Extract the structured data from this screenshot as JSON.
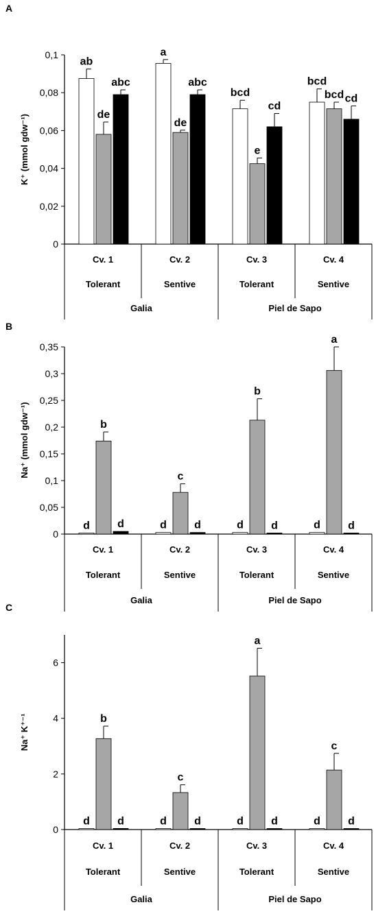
{
  "chart_data": [
    {
      "panel_letter": "A",
      "type": "bar",
      "ylabel": "K⁺ (mmol gdw⁻¹)",
      "ylim": [
        0,
        0.1
      ],
      "yticks": [
        0,
        0.02,
        0.04,
        0.06,
        0.08,
        0.1
      ],
      "ytick_labels": [
        "0",
        "0,02",
        "0,04",
        "0,06",
        "0,08",
        "0,1"
      ],
      "categories": [
        "Cv. 1",
        "Cv. 2",
        "Cv. 3",
        "Cv. 4"
      ],
      "category_groups": [
        "Tolerant",
        "Sentive",
        "Tolerant",
        "Sentive"
      ],
      "type_groups": [
        "Galia",
        "Piel de Sapo"
      ],
      "series": [
        {
          "fill": "#ffffff",
          "values": [
            0.0875,
            0.0955,
            0.0715,
            0.075
          ],
          "errors": [
            0.005,
            0.002,
            0.0045,
            0.007
          ],
          "letters": [
            "ab",
            "a",
            "bcd",
            "bcd"
          ]
        },
        {
          "fill": "#a6a6a6",
          "values": [
            0.058,
            0.059,
            0.0425,
            0.0715
          ],
          "errors": [
            0.0065,
            0.0012,
            0.003,
            0.0035
          ],
          "letters": [
            "de",
            "de",
            "e",
            "bcd"
          ]
        },
        {
          "fill": "#000000",
          "values": [
            0.079,
            0.079,
            0.062,
            0.066
          ],
          "errors": [
            0.0025,
            0.0025,
            0.007,
            0.007
          ],
          "letters": [
            "abc",
            "abc",
            "cd",
            "cd"
          ]
        }
      ]
    },
    {
      "panel_letter": "B",
      "type": "bar",
      "ylabel": "Na⁺ (mmol gdw⁻¹)",
      "ylim": [
        0,
        0.35
      ],
      "yticks": [
        0,
        0.05,
        0.1,
        0.15,
        0.2,
        0.25,
        0.3,
        0.35
      ],
      "ytick_labels": [
        "0",
        "0,05",
        "0,1",
        "0,15",
        "0,2",
        "0,25",
        "0,3",
        "0,35"
      ],
      "categories": [
        "Cv. 1",
        "Cv. 2",
        "Cv. 3",
        "Cv. 4"
      ],
      "category_groups": [
        "Tolerant",
        "Sentive",
        "Tolerant",
        "Sentive"
      ],
      "type_groups": [
        "Galia",
        "Piel de Sapo"
      ],
      "series": [
        {
          "fill": "#ffffff",
          "values": [
            0.002,
            0.003,
            0.003,
            0.003
          ],
          "errors": [
            0,
            0,
            0,
            0
          ],
          "letters": [
            "d",
            "d",
            "d",
            "d"
          ]
        },
        {
          "fill": "#a6a6a6",
          "values": [
            0.174,
            0.078,
            0.213,
            0.306
          ],
          "errors": [
            0.017,
            0.016,
            0.04,
            0.044
          ],
          "letters": [
            "b",
            "c",
            "b",
            "a"
          ]
        },
        {
          "fill": "#000000",
          "values": [
            0.005,
            0.003,
            0.002,
            0.002
          ],
          "errors": [
            0,
            0,
            0,
            0
          ],
          "letters": [
            "d",
            "d",
            "d",
            "d"
          ]
        }
      ]
    },
    {
      "panel_letter": "C",
      "type": "bar",
      "ylabel": "Na⁺ K⁺⁻¹",
      "ylim": [
        0,
        7
      ],
      "yticks": [
        0,
        2,
        4,
        6
      ],
      "ytick_labels": [
        "0",
        "2",
        "4",
        "6"
      ],
      "categories": [
        "Cv. 1",
        "Cv. 2",
        "Cv. 3",
        "Cv. 4"
      ],
      "category_groups": [
        "Tolerant",
        "Sentive",
        "Tolerant",
        "Sentive"
      ],
      "type_groups": [
        "Galia",
        "Piel de Sapo"
      ],
      "series": [
        {
          "fill": "#ffffff",
          "values": [
            0.03,
            0.03,
            0.03,
            0.03
          ],
          "errors": [
            0,
            0,
            0,
            0
          ],
          "letters": [
            "d",
            "d",
            "d",
            "d"
          ]
        },
        {
          "fill": "#a6a6a6",
          "values": [
            3.27,
            1.33,
            5.52,
            2.14
          ],
          "errors": [
            0.45,
            0.28,
            1.0,
            0.6
          ],
          "letters": [
            "b",
            "c",
            "a",
            "c"
          ]
        },
        {
          "fill": "#000000",
          "values": [
            0.04,
            0.03,
            0.03,
            0.02
          ],
          "errors": [
            0,
            0,
            0,
            0
          ],
          "letters": [
            "d",
            "d",
            "d",
            "d"
          ]
        }
      ]
    }
  ]
}
